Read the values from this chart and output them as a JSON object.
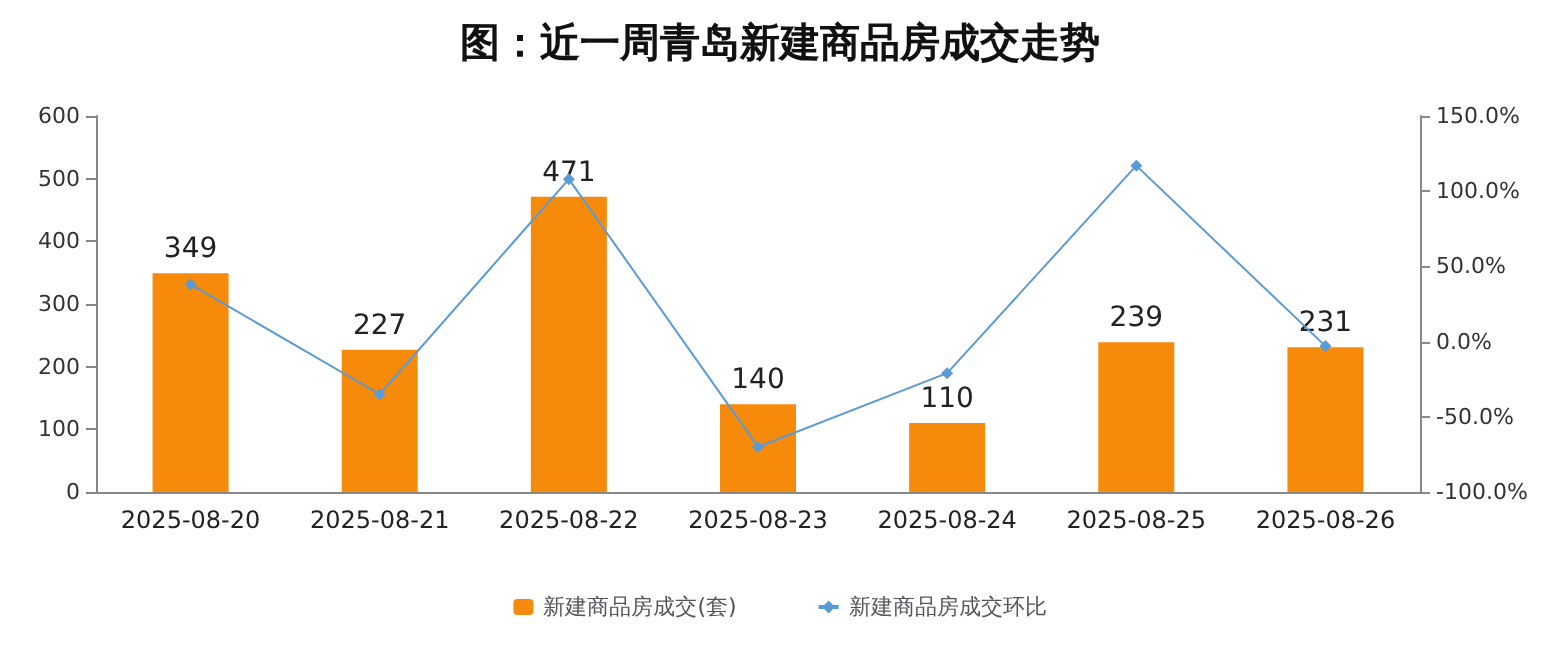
{
  "chart_data": {
    "type": "bar",
    "title": "图：近一周青岛新建商品房成交走势",
    "categories": [
      "2025-08-20",
      "2025-08-21",
      "2025-08-22",
      "2025-08-23",
      "2025-08-24",
      "2025-08-25",
      "2025-08-26"
    ],
    "series": [
      {
        "name": "新建商品房成交(套)",
        "color": "#f58a0b",
        "values": [
          349,
          227,
          471,
          140,
          110,
          239,
          231
        ],
        "data_labels": true
      },
      {
        "name": "新建商品房成交环比",
        "type": "line",
        "axis": "y2",
        "color": "#5b9bd5",
        "marker": "diamond",
        "values": [
          38,
          -35,
          108,
          -70,
          -21,
          117,
          -3
        ]
      }
    ],
    "ylim": [
      0,
      600
    ],
    "yticks": [
      0,
      100,
      200,
      300,
      400,
      500,
      600
    ],
    "y2lim": [
      -100,
      150
    ],
    "y2ticks": [
      {
        "value": -100,
        "label": "-100.0%"
      },
      {
        "value": -50,
        "label": "-50.0%"
      },
      {
        "value": 0,
        "label": "0.0%"
      },
      {
        "value": 50,
        "label": "50.0%"
      },
      {
        "value": 100,
        "label": "100.0%"
      },
      {
        "value": 150,
        "label": "150.0%"
      }
    ],
    "grid": false,
    "legend": "bottom"
  }
}
